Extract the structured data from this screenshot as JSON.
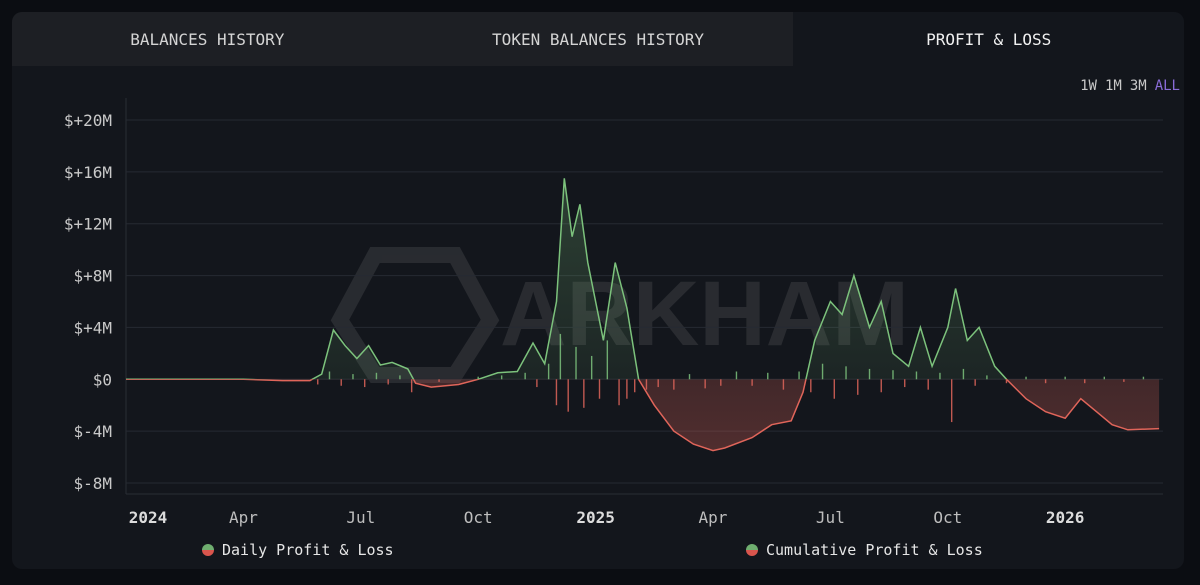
{
  "tabs": [
    {
      "label": "BALANCES HISTORY"
    },
    {
      "label": "TOKEN BALANCES HISTORY"
    },
    {
      "label": "PROFIT & LOSS",
      "active": true
    }
  ],
  "ranges": [
    {
      "label": "1W"
    },
    {
      "label": "1M"
    },
    {
      "label": "3M"
    },
    {
      "label": "ALL",
      "selected": true
    }
  ],
  "watermark": "ARKHAM",
  "colors": {
    "positive": "#7cc27c",
    "negative": "#e0655a",
    "accent": "#8a6cd8"
  },
  "legend": {
    "daily": "Daily Profit & Loss",
    "cumulative": "Cumulative Profit & Loss"
  },
  "chart_data": {
    "type": "line",
    "x_unit": "months since Jan 2024",
    "xlim": [
      0,
      26.5
    ],
    "ylim": [
      -8,
      20
    ],
    "yticks": [
      {
        "v": 20,
        "label": "$+20M"
      },
      {
        "v": 16,
        "label": "$+16M"
      },
      {
        "v": 12,
        "label": "$+12M"
      },
      {
        "v": 8,
        "label": "$+8M"
      },
      {
        "v": 4,
        "label": "$+4M"
      },
      {
        "v": 0,
        "label": "$0"
      },
      {
        "v": -4,
        "label": "$-4M"
      },
      {
        "v": -8,
        "label": "$-8M"
      }
    ],
    "xticks": [
      {
        "v": 0,
        "label": "2024",
        "bold": true
      },
      {
        "v": 3,
        "label": "Apr"
      },
      {
        "v": 6,
        "label": "Jul"
      },
      {
        "v": 9,
        "label": "Oct"
      },
      {
        "v": 12,
        "label": "2025",
        "bold": true
      },
      {
        "v": 15,
        "label": "Apr"
      },
      {
        "v": 18,
        "label": "Jul"
      },
      {
        "v": 21,
        "label": "Oct"
      },
      {
        "v": 24,
        "label": "2026",
        "bold": true
      }
    ],
    "series": [
      {
        "name": "Cumulative Profit & Loss",
        "points": [
          [
            0,
            0
          ],
          [
            3,
            0
          ],
          [
            4,
            -0.1
          ],
          [
            4.7,
            -0.1
          ],
          [
            5,
            0.4
          ],
          [
            5.3,
            3.8
          ],
          [
            5.6,
            2.6
          ],
          [
            5.9,
            1.6
          ],
          [
            6.2,
            2.6
          ],
          [
            6.5,
            1.1
          ],
          [
            6.8,
            1.3
          ],
          [
            7.2,
            0.8
          ],
          [
            7.4,
            -0.3
          ],
          [
            7.8,
            -0.6
          ],
          [
            8.5,
            -0.4
          ],
          [
            9,
            0
          ],
          [
            9.5,
            0.5
          ],
          [
            10,
            0.6
          ],
          [
            10.4,
            2.8
          ],
          [
            10.7,
            1.2
          ],
          [
            11,
            6
          ],
          [
            11.2,
            15.5
          ],
          [
            11.4,
            11
          ],
          [
            11.6,
            13.5
          ],
          [
            11.8,
            9
          ],
          [
            12,
            6
          ],
          [
            12.2,
            3
          ],
          [
            12.5,
            9
          ],
          [
            12.8,
            5.5
          ],
          [
            13.1,
            0
          ],
          [
            13.5,
            -2
          ],
          [
            14,
            -4
          ],
          [
            14.5,
            -5
          ],
          [
            15,
            -5.5
          ],
          [
            15.3,
            -5.3
          ],
          [
            16,
            -4.5
          ],
          [
            16.5,
            -3.5
          ],
          [
            17,
            -3.2
          ],
          [
            17.3,
            -1
          ],
          [
            17.6,
            3
          ],
          [
            18,
            6
          ],
          [
            18.3,
            5
          ],
          [
            18.6,
            8
          ],
          [
            19,
            4
          ],
          [
            19.3,
            6
          ],
          [
            19.6,
            2
          ],
          [
            20,
            1
          ],
          [
            20.3,
            4
          ],
          [
            20.6,
            1
          ],
          [
            21,
            4
          ],
          [
            21.2,
            7
          ],
          [
            21.5,
            3
          ],
          [
            21.8,
            4
          ],
          [
            22.2,
            1
          ],
          [
            22.5,
            0
          ],
          [
            23,
            -1.5
          ],
          [
            23.5,
            -2.5
          ],
          [
            24,
            -3
          ],
          [
            24.4,
            -1.5
          ],
          [
            24.8,
            -2.5
          ],
          [
            25.2,
            -3.5
          ],
          [
            25.6,
            -3.9
          ],
          [
            26.4,
            -3.8
          ]
        ]
      },
      {
        "name": "Daily Profit & Loss",
        "bars": [
          [
            4.9,
            -0.4
          ],
          [
            5.2,
            0.6
          ],
          [
            5.5,
            -0.5
          ],
          [
            5.8,
            0.4
          ],
          [
            6.1,
            -0.6
          ],
          [
            6.4,
            0.5
          ],
          [
            6.7,
            -0.4
          ],
          [
            7.0,
            0.3
          ],
          [
            7.3,
            -1.0
          ],
          [
            8.0,
            -0.2
          ],
          [
            9.0,
            0.2
          ],
          [
            9.6,
            0.3
          ],
          [
            10.2,
            0.5
          ],
          [
            10.5,
            -0.6
          ],
          [
            10.8,
            1.2
          ],
          [
            11.0,
            -2.0
          ],
          [
            11.1,
            3.5
          ],
          [
            11.3,
            -2.5
          ],
          [
            11.5,
            2.5
          ],
          [
            11.7,
            -2.2
          ],
          [
            11.9,
            1.8
          ],
          [
            12.1,
            -1.5
          ],
          [
            12.3,
            3.0
          ],
          [
            12.6,
            -2.0
          ],
          [
            12.8,
            -1.5
          ],
          [
            13.0,
            -1.0
          ],
          [
            13.3,
            -0.8
          ],
          [
            13.6,
            -0.6
          ],
          [
            14.0,
            -0.8
          ],
          [
            14.4,
            0.4
          ],
          [
            14.8,
            -0.7
          ],
          [
            15.2,
            -0.5
          ],
          [
            15.6,
            0.6
          ],
          [
            16.0,
            -0.5
          ],
          [
            16.4,
            0.5
          ],
          [
            16.8,
            -0.8
          ],
          [
            17.2,
            0.6
          ],
          [
            17.5,
            -1.0
          ],
          [
            17.8,
            1.2
          ],
          [
            18.1,
            -1.5
          ],
          [
            18.4,
            1.0
          ],
          [
            18.7,
            -1.2
          ],
          [
            19.0,
            0.8
          ],
          [
            19.3,
            -1.0
          ],
          [
            19.6,
            0.7
          ],
          [
            19.9,
            -0.6
          ],
          [
            20.2,
            0.6
          ],
          [
            20.5,
            -0.8
          ],
          [
            20.8,
            0.5
          ],
          [
            21.1,
            -3.3
          ],
          [
            21.4,
            0.8
          ],
          [
            21.7,
            -0.5
          ],
          [
            22.0,
            0.3
          ],
          [
            22.5,
            -0.3
          ],
          [
            23.0,
            0.2
          ],
          [
            23.5,
            -0.3
          ],
          [
            24.0,
            0.2
          ],
          [
            24.5,
            -0.3
          ],
          [
            25.0,
            0.2
          ],
          [
            25.5,
            -0.2
          ],
          [
            26.0,
            0.2
          ]
        ]
      }
    ]
  }
}
